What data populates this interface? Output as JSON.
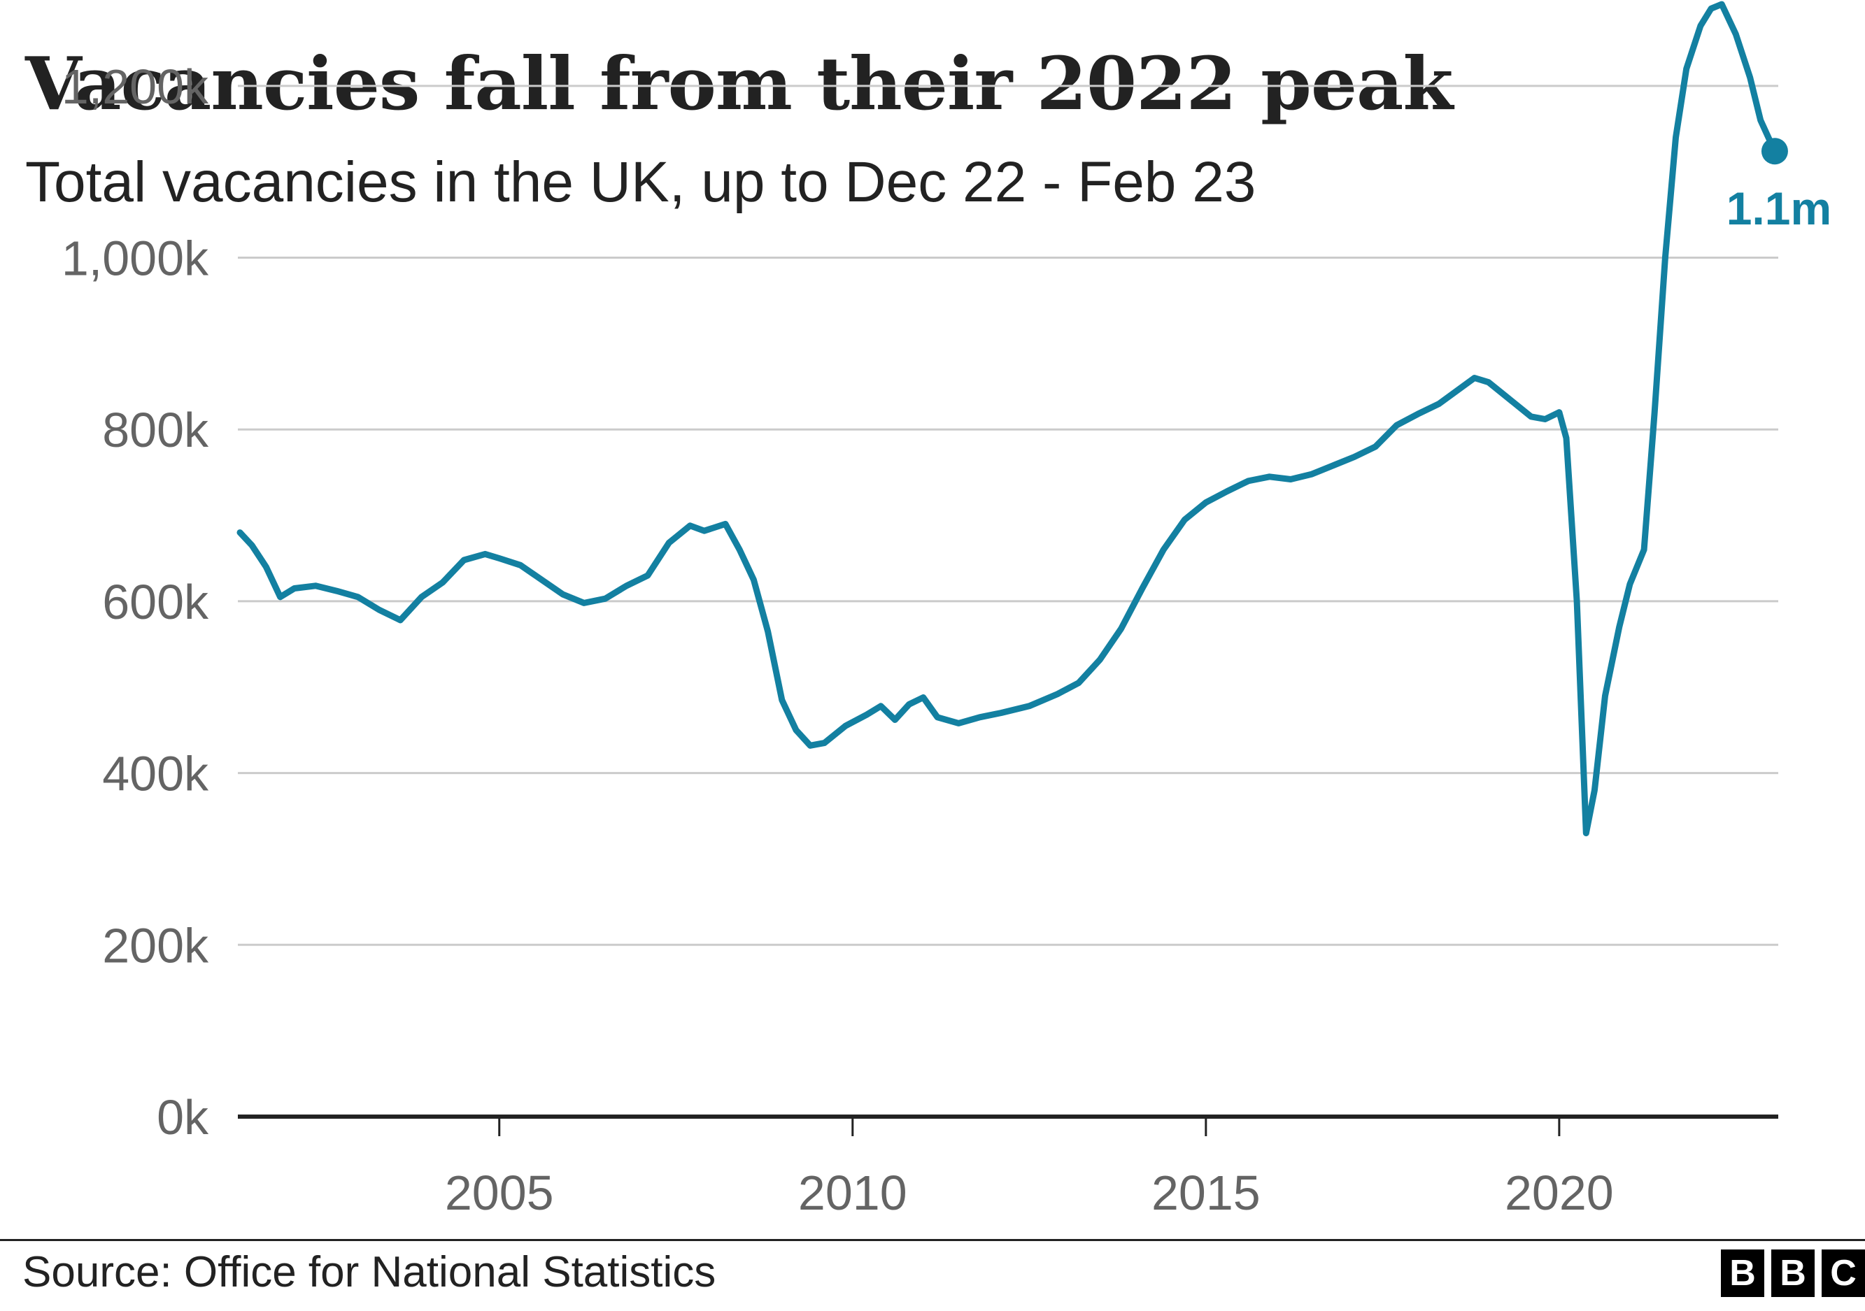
{
  "title": "Vacancies fall from their 2022 peak",
  "subtitle": "Total vacancies in the UK, up to Dec 22 - Feb 23",
  "source": "Source: Office for National Statistics",
  "logo": [
    "B",
    "B",
    "C"
  ],
  "colors": {
    "line": "#1380A1",
    "grid": "#cbcbcb",
    "baseline": "#222222",
    "text": "#222222",
    "tick_text": "#646464"
  },
  "chart_data": {
    "type": "line",
    "title": "Vacancies fall from their 2022 peak",
    "subtitle": "Total vacancies in the UK, up to Dec 22 - Feb 23",
    "xlabel": "",
    "ylabel": "",
    "xlim": [
      2001.3,
      2023.1
    ],
    "ylim": [
      0,
      1300000
    ],
    "yticks": [
      0,
      200000,
      400000,
      600000,
      800000,
      1000000,
      1200000
    ],
    "ytick_labels": [
      "0k",
      "200k",
      "400k",
      "600k",
      "800k",
      "1,000k",
      "1,200k"
    ],
    "xticks": [
      2005,
      2010,
      2015,
      2020
    ],
    "xtick_labels": [
      "2005",
      "2010",
      "2015",
      "2020"
    ],
    "grid": true,
    "end_label": "1.1m",
    "series": [
      {
        "values": [
          [
            2001.33,
            680000
          ],
          [
            2001.5,
            665000
          ],
          [
            2001.7,
            640000
          ],
          [
            2001.9,
            605000
          ],
          [
            2002.1,
            615000
          ],
          [
            2002.4,
            618000
          ],
          [
            2002.7,
            612000
          ],
          [
            2003.0,
            605000
          ],
          [
            2003.3,
            590000
          ],
          [
            2003.6,
            578000
          ],
          [
            2003.9,
            605000
          ],
          [
            2004.2,
            622000
          ],
          [
            2004.5,
            648000
          ],
          [
            2004.8,
            655000
          ],
          [
            2005.0,
            650000
          ],
          [
            2005.3,
            642000
          ],
          [
            2005.6,
            625000
          ],
          [
            2005.9,
            608000
          ],
          [
            2006.2,
            598000
          ],
          [
            2006.5,
            603000
          ],
          [
            2006.8,
            618000
          ],
          [
            2007.1,
            630000
          ],
          [
            2007.4,
            668000
          ],
          [
            2007.7,
            688000
          ],
          [
            2007.9,
            682000
          ],
          [
            2008.2,
            690000
          ],
          [
            2008.4,
            660000
          ],
          [
            2008.6,
            625000
          ],
          [
            2008.8,
            565000
          ],
          [
            2009.0,
            485000
          ],
          [
            2009.2,
            450000
          ],
          [
            2009.4,
            432000
          ],
          [
            2009.6,
            435000
          ],
          [
            2009.9,
            455000
          ],
          [
            2010.2,
            468000
          ],
          [
            2010.4,
            478000
          ],
          [
            2010.6,
            462000
          ],
          [
            2010.8,
            480000
          ],
          [
            2011.0,
            488000
          ],
          [
            2011.2,
            465000
          ],
          [
            2011.5,
            458000
          ],
          [
            2011.8,
            465000
          ],
          [
            2012.1,
            470000
          ],
          [
            2012.5,
            478000
          ],
          [
            2012.9,
            492000
          ],
          [
            2013.2,
            505000
          ],
          [
            2013.5,
            532000
          ],
          [
            2013.8,
            568000
          ],
          [
            2014.1,
            615000
          ],
          [
            2014.4,
            660000
          ],
          [
            2014.7,
            695000
          ],
          [
            2015.0,
            715000
          ],
          [
            2015.3,
            728000
          ],
          [
            2015.6,
            740000
          ],
          [
            2015.9,
            745000
          ],
          [
            2016.2,
            742000
          ],
          [
            2016.5,
            748000
          ],
          [
            2016.8,
            758000
          ],
          [
            2017.1,
            768000
          ],
          [
            2017.4,
            780000
          ],
          [
            2017.7,
            805000
          ],
          [
            2018.0,
            818000
          ],
          [
            2018.3,
            830000
          ],
          [
            2018.6,
            848000
          ],
          [
            2018.8,
            860000
          ],
          [
            2019.0,
            855000
          ],
          [
            2019.3,
            835000
          ],
          [
            2019.6,
            815000
          ],
          [
            2019.8,
            812000
          ],
          [
            2020.0,
            820000
          ],
          [
            2020.1,
            790000
          ],
          [
            2020.25,
            600000
          ],
          [
            2020.38,
            330000
          ],
          [
            2020.5,
            380000
          ],
          [
            2020.65,
            490000
          ],
          [
            2020.85,
            570000
          ],
          [
            2021.0,
            620000
          ],
          [
            2021.2,
            660000
          ],
          [
            2021.35,
            820000
          ],
          [
            2021.5,
            1000000
          ],
          [
            2021.65,
            1140000
          ],
          [
            2021.8,
            1220000
          ],
          [
            2022.0,
            1270000
          ],
          [
            2022.15,
            1290000
          ],
          [
            2022.3,
            1295000
          ],
          [
            2022.5,
            1260000
          ],
          [
            2022.7,
            1210000
          ],
          [
            2022.85,
            1160000
          ],
          [
            2023.05,
            1124000
          ]
        ]
      }
    ]
  }
}
